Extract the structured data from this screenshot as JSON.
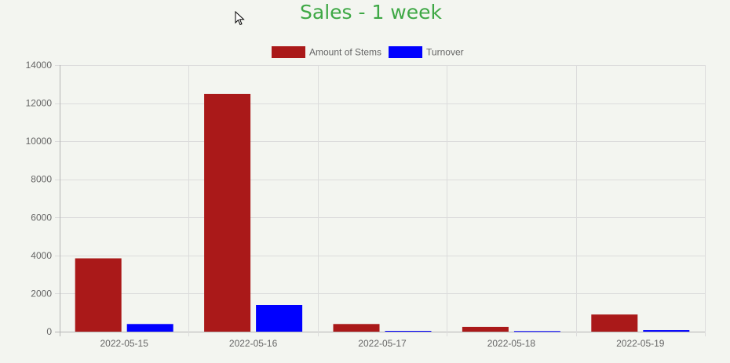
{
  "header": {
    "title": "Sales - 1 week"
  },
  "colors": {
    "stems": "#aa1919",
    "turnover": "#0000ff",
    "title": "#3ea845"
  },
  "chart_data": {
    "type": "bar",
    "title": "Sales - 1 week",
    "categories": [
      "2022-05-15",
      "2022-05-16",
      "2022-05-17",
      "2022-05-18",
      "2022-05-19"
    ],
    "series": [
      {
        "name": "Amount of Stems",
        "color": "#aa1919",
        "values": [
          3850,
          12480,
          400,
          250,
          900
        ]
      },
      {
        "name": "Turnover",
        "color": "#0000ff",
        "values": [
          400,
          1400,
          40,
          30,
          80
        ]
      }
    ],
    "ylim": [
      0,
      14000
    ],
    "yticks": [
      "0",
      "2000",
      "4000",
      "6000",
      "8000",
      "10000",
      "12000",
      "14000"
    ],
    "grid": true,
    "legend": "top-center"
  }
}
